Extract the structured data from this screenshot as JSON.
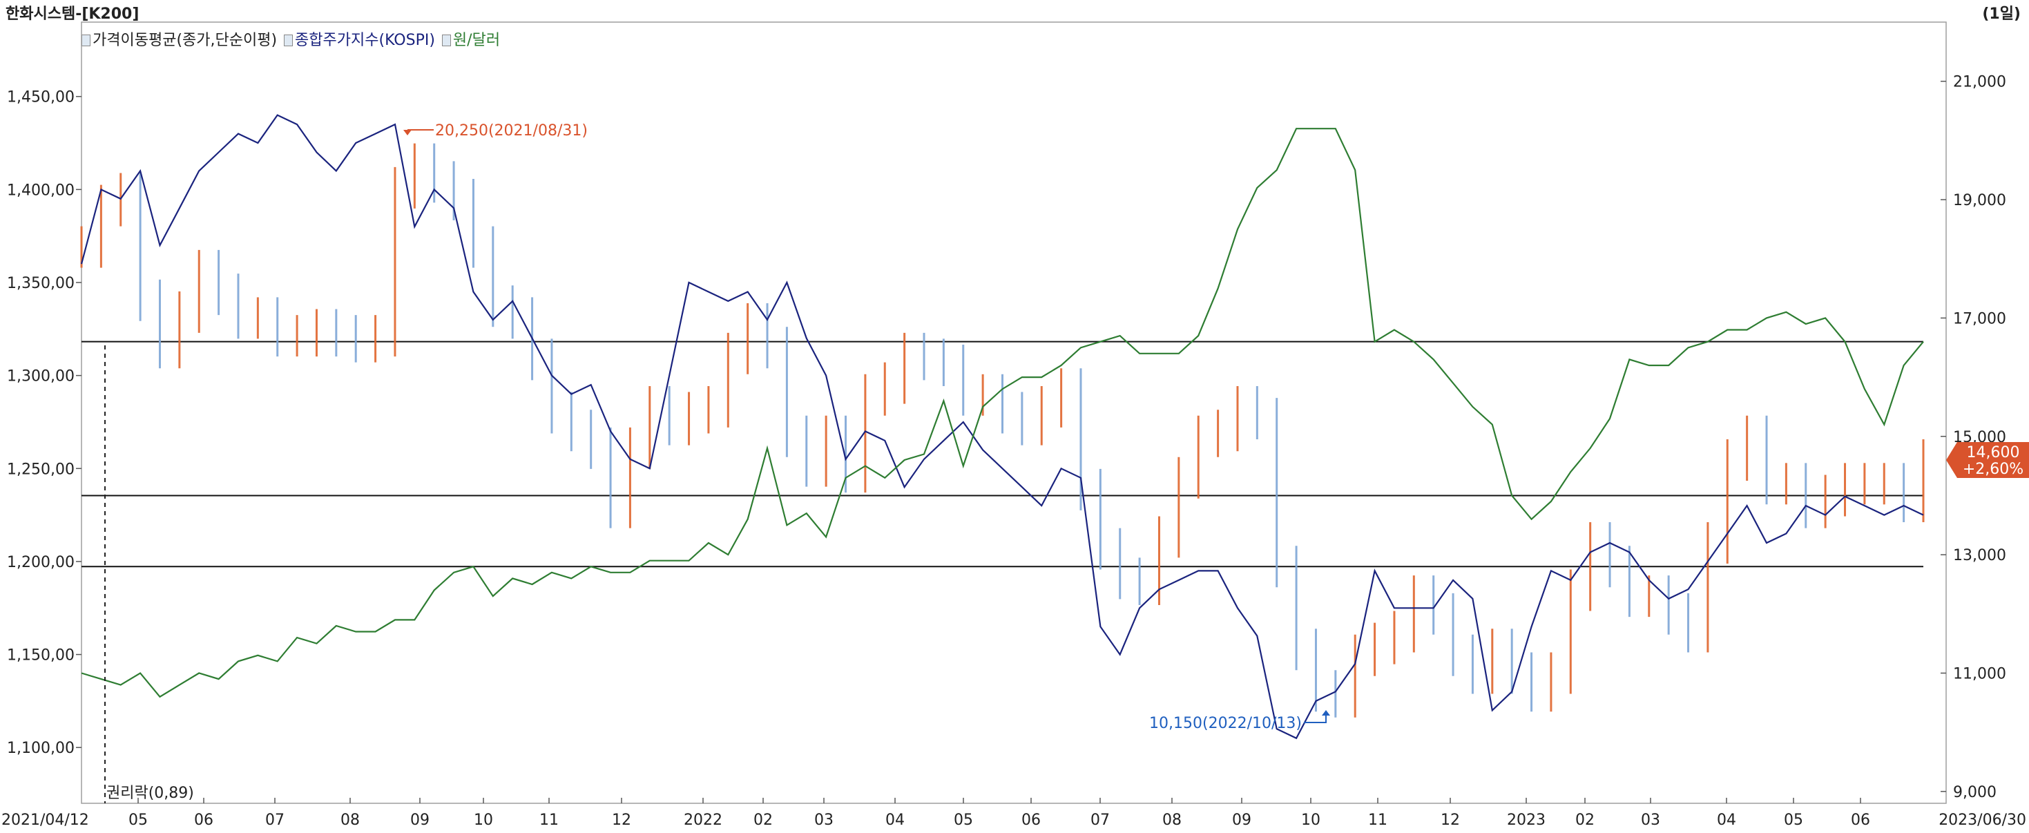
{
  "title": "한화시스템-[K200]",
  "period": "(1일)",
  "legend": [
    {
      "label": "가격이동평균(종가,단순이평)",
      "color": "#222222"
    },
    {
      "label": "종합주가지수(KOSPI)",
      "color": "#1a237e"
    },
    {
      "label": "원/달러",
      "color": "#2e7d32"
    }
  ],
  "chart_data": {
    "type": "line",
    "title": "한화시스템-[K200]",
    "x_start": "2021/04/12",
    "x_end": "2023/06/30",
    "x_tick_labels": [
      "2021/04/12",
      "05",
      "06",
      "07",
      "08",
      "09",
      "10",
      "11",
      "12",
      "2022",
      "02",
      "03",
      "04",
      "05",
      "06",
      "07",
      "08",
      "09",
      "10",
      "11",
      "12",
      "2023",
      "02",
      "03",
      "04",
      "05",
      "06",
      "2023/06/30"
    ],
    "left_axis": {
      "ticks": [
        "1,450,00",
        "1,400,00",
        "1,350,00",
        "1,300,00",
        "1,250,00",
        "1,200,00",
        "1,150,00",
        "1,100,00"
      ],
      "range": [
        1070,
        1490
      ]
    },
    "right_axis": {
      "ticks": [
        "21,000",
        "19,000",
        "17,000",
        "15,000",
        "13,000",
        "11,000",
        "9,000"
      ],
      "range": [
        8800,
        22000
      ]
    },
    "horizontal_lines_price": [
      16600,
      14000,
      12800
    ],
    "annotations": {
      "high": "20,250(2021/08/31)",
      "low": "10,150(2022/10/13)",
      "rights": "권리락(0,89)"
    },
    "current_price": {
      "value": "14,600",
      "change": "+2,60%",
      "color": "#d9532c"
    },
    "series": [
      {
        "name": "종합주가지수(KOSPI)",
        "color": "#1a237e",
        "axis": "left",
        "values": [
          1360,
          1400,
          1395,
          1410,
          1370,
          1390,
          1410,
          1420,
          1430,
          1425,
          1440,
          1435,
          1420,
          1410,
          1425,
          1430,
          1435,
          1380,
          1400,
          1390,
          1345,
          1330,
          1340,
          1320,
          1300,
          1290,
          1295,
          1270,
          1255,
          1250,
          1300,
          1350,
          1345,
          1340,
          1345,
          1330,
          1350,
          1320,
          1300,
          1255,
          1270,
          1265,
          1240,
          1255,
          1265,
          1275,
          1260,
          1250,
          1240,
          1230,
          1250,
          1245,
          1165,
          1150,
          1175,
          1185,
          1190,
          1195,
          1195,
          1175,
          1160,
          1110,
          1105,
          1125,
          1130,
          1145,
          1195,
          1175,
          1175,
          1175,
          1190,
          1180,
          1120,
          1130,
          1165,
          1195,
          1190,
          1205,
          1210,
          1205,
          1190,
          1180,
          1185,
          1200,
          1215,
          1230,
          1210,
          1215,
          1230,
          1225,
          1235,
          1230,
          1225,
          1230,
          1225
        ]
      },
      {
        "name": "원/달러",
        "color": "#2e7d32",
        "axis": "right",
        "values": [
          11000,
          10900,
          10800,
          11000,
          10600,
          10800,
          11000,
          10900,
          11200,
          11300,
          11200,
          11600,
          11500,
          11800,
          11700,
          11700,
          11900,
          11900,
          12400,
          12700,
          12800,
          12300,
          12600,
          12500,
          12700,
          12600,
          12800,
          12700,
          12700,
          12900,
          12900,
          12900,
          13200,
          13000,
          13600,
          14800,
          13500,
          13700,
          13300,
          14300,
          14500,
          14300,
          14600,
          14700,
          15600,
          14500,
          15500,
          15800,
          16000,
          16000,
          16200,
          16500,
          16600,
          16700,
          16400,
          16400,
          16400,
          16700,
          17500,
          18500,
          19200,
          19500,
          20200,
          20200,
          20200,
          19500,
          16600,
          16800,
          16600,
          16300,
          15900,
          15500,
          15200,
          14000,
          13600,
          13900,
          14400,
          14800,
          15300,
          16300,
          16200,
          16200,
          16500,
          16600,
          16800,
          16800,
          17000,
          17100,
          16900,
          17000,
          16600,
          15800,
          15200,
          16200,
          16600
        ]
      },
      {
        "name": "가격이동평균(종가,단순이평)",
        "color": "#e0662d",
        "axis": "right",
        "values": [
          18200,
          18900,
          19100,
          17300,
          16500,
          17100,
          17800,
          17400,
          17000,
          17000,
          16700,
          16700,
          16800,
          16700,
          16600,
          16700,
          19200,
          19600,
          19300,
          19000,
          18200,
          17200,
          17000,
          16300,
          15400,
          15100,
          14800,
          13800,
          14800,
          15500,
          15200,
          15400,
          15500,
          16400,
          16900,
          16500,
          15000,
          14500,
          15000,
          14400,
          15700,
          15900,
          16400,
          16300,
          16200,
          15700,
          15700,
          15400,
          15200,
          15500,
          15800,
          14100,
          13100,
          12600,
          12500,
          13300,
          14300,
          15000,
          15100,
          15500,
          15300,
          12800,
          11400,
          10700,
          10600,
          11300,
          11500,
          11700,
          12300,
          12000,
          11300,
          11000,
          11400,
          11000,
          10700,
          11000,
          12400,
          13200,
          12800,
          12300,
          12300,
          12000,
          11700,
          13200,
          14600,
          15000,
          14200,
          14200,
          13800,
          14000,
          14200,
          14200,
          14200,
          13900,
          14600
        ]
      }
    ]
  }
}
